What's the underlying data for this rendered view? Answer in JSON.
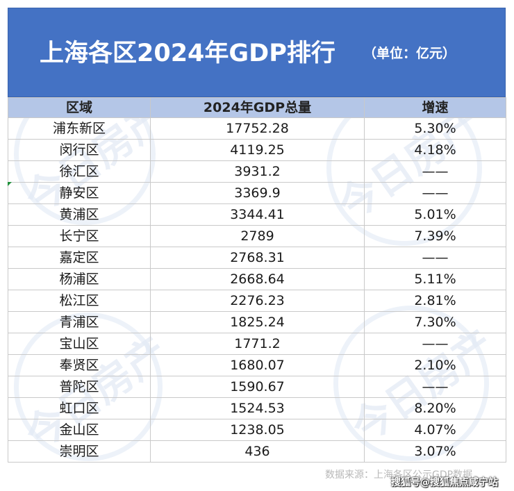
{
  "header": {
    "title": "上海各区2024年GDP排行",
    "unit": "（单位：亿元）"
  },
  "table": {
    "columns": [
      "区域",
      "2024年GDP总量",
      "增速"
    ],
    "rows": [
      {
        "district": "浦东新区",
        "gdp": "17752.28",
        "growth": "5.30%"
      },
      {
        "district": "闵行区",
        "gdp": "4119.25",
        "growth": "4.18%"
      },
      {
        "district": "徐汇区",
        "gdp": "3931.2",
        "growth": "——"
      },
      {
        "district": "静安区",
        "gdp": "3369.9",
        "growth": "——"
      },
      {
        "district": "黄浦区",
        "gdp": "3344.41",
        "growth": "5.01%"
      },
      {
        "district": "长宁区",
        "gdp": "2789",
        "growth": "7.39%"
      },
      {
        "district": "嘉定区",
        "gdp": "2768.31",
        "growth": "——"
      },
      {
        "district": "杨浦区",
        "gdp": "2668.64",
        "growth": "5.11%"
      },
      {
        "district": "松江区",
        "gdp": "2276.23",
        "growth": "2.81%"
      },
      {
        "district": "青浦区",
        "gdp": "1825.24",
        "growth": "7.30%"
      },
      {
        "district": "宝山区",
        "gdp": "1771.2",
        "growth": "——"
      },
      {
        "district": "奉贤区",
        "gdp": "1680.07",
        "growth": "2.10%"
      },
      {
        "district": "普陀区",
        "gdp": "1590.67",
        "growth": "——"
      },
      {
        "district": "虹口区",
        "gdp": "1524.53",
        "growth": "8.20%"
      },
      {
        "district": "金山区",
        "gdp": "1238.05",
        "growth": "4.07%"
      },
      {
        "district": "崇明区",
        "gdp": "436",
        "growth": "3.07%"
      }
    ]
  },
  "footer": {
    "source": "数据来源：上海各区公示GDP数据",
    "credit": "搜狐号@搜狐焦点咸宁站"
  },
  "watermark": {
    "text": "今日房产"
  },
  "colors": {
    "title_bg": "#4472c4",
    "header_bg": "#b4c6e7",
    "grid": "#c9c9c9"
  }
}
